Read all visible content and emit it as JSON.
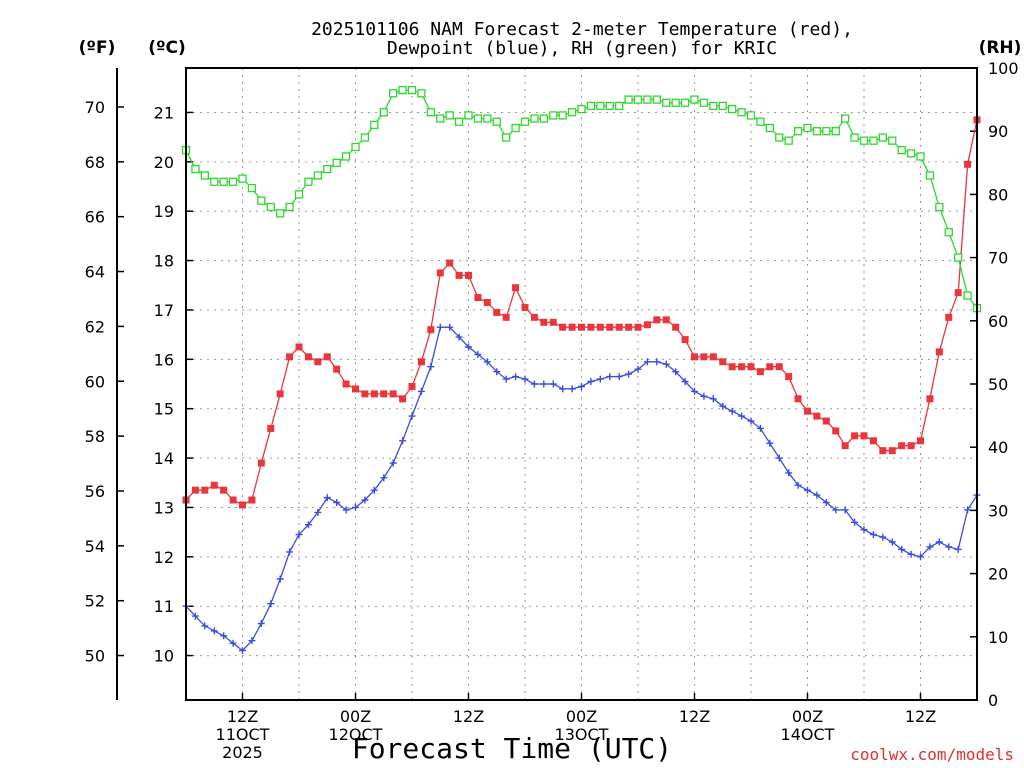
{
  "chart_data": {
    "type": "line",
    "title": [
      "2025101106 NAM Forecast 2-meter Temperature (red),",
      "Dewpoint (blue), RH (green) for KRIC"
    ],
    "units": {
      "fahrenheit": "(ºF)",
      "celsius": "(ºC)",
      "rh": "(RH)"
    },
    "xlabel": "Forecast Time (UTC)",
    "credit": "coolwx.com/models",
    "x_ticks": [
      {
        "hour": 6,
        "lines": [
          "12Z",
          "11OCT",
          "2025"
        ]
      },
      {
        "hour": 18,
        "lines": [
          "00Z",
          "12OCT"
        ]
      },
      {
        "hour": 30,
        "lines": [
          "12Z"
        ]
      },
      {
        "hour": 42,
        "lines": [
          "00Z",
          "13OCT"
        ]
      },
      {
        "hour": 54,
        "lines": [
          "12Z"
        ]
      },
      {
        "hour": 66,
        "lines": [
          "00Z",
          "14OCT"
        ]
      },
      {
        "hour": 78,
        "lines": [
          "12Z"
        ]
      }
    ],
    "xlim": [
      0,
      84
    ],
    "ylim_celsius": [
      9.1,
      21.9
    ],
    "ylim_rh": [
      0,
      100
    ],
    "celsius_ticks": [
      10,
      11,
      12,
      13,
      14,
      15,
      16,
      17,
      18,
      19,
      20,
      21
    ],
    "fahrenheit_ticks": [
      50,
      52,
      54,
      56,
      58,
      60,
      62,
      64,
      66,
      68,
      70
    ],
    "rh_ticks": [
      0,
      10,
      20,
      30,
      40,
      50,
      60,
      70,
      80,
      90,
      100
    ],
    "grid": true,
    "series": [
      {
        "name": "Temperature",
        "color": "#e8363c",
        "marker": "filled-square",
        "axis": "celsius",
        "values": [
          13.15,
          13.35,
          13.35,
          13.45,
          13.35,
          13.15,
          13.05,
          13.15,
          13.9,
          14.6,
          15.3,
          16.05,
          16.25,
          16.05,
          15.95,
          16.05,
          15.8,
          15.5,
          15.4,
          15.3,
          15.3,
          15.3,
          15.3,
          15.2,
          15.45,
          15.95,
          16.6,
          17.75,
          17.95,
          17.7,
          17.7,
          17.25,
          17.15,
          16.95,
          16.85,
          17.45,
          17.05,
          16.85,
          16.75,
          16.75,
          16.65,
          16.65,
          16.65,
          16.65,
          16.65,
          16.65,
          16.65,
          16.65,
          16.65,
          16.7,
          16.8,
          16.8,
          16.65,
          16.4,
          16.05,
          16.05,
          16.05,
          15.95,
          15.85,
          15.85,
          15.85,
          15.75,
          15.85,
          15.85,
          15.65,
          15.2,
          14.95,
          14.85,
          14.75,
          14.55,
          14.25,
          14.45,
          14.45,
          14.35,
          14.15,
          14.15,
          14.25,
          14.25,
          14.35,
          15.2,
          16.15,
          16.85,
          17.35,
          19.95,
          20.85
        ]
      },
      {
        "name": "Dewpoint",
        "color": "#3b4de0",
        "marker": "plus",
        "axis": "celsius",
        "values": [
          11.0,
          10.8,
          10.6,
          10.5,
          10.4,
          10.25,
          10.1,
          10.3,
          10.65,
          11.05,
          11.55,
          12.1,
          12.45,
          12.65,
          12.9,
          13.2,
          13.1,
          12.95,
          13.0,
          13.15,
          13.35,
          13.6,
          13.9,
          14.35,
          14.85,
          15.35,
          15.85,
          16.65,
          16.65,
          16.45,
          16.25,
          16.1,
          15.95,
          15.75,
          15.6,
          15.65,
          15.6,
          15.5,
          15.5,
          15.5,
          15.4,
          15.4,
          15.45,
          15.55,
          15.6,
          15.65,
          15.65,
          15.7,
          15.8,
          15.95,
          15.95,
          15.9,
          15.75,
          15.55,
          15.35,
          15.25,
          15.2,
          15.05,
          14.95,
          14.85,
          14.75,
          14.6,
          14.3,
          14.0,
          13.7,
          13.45,
          13.35,
          13.25,
          13.1,
          12.95,
          12.95,
          12.7,
          12.55,
          12.45,
          12.4,
          12.3,
          12.15,
          12.05,
          12.0,
          12.2,
          12.3,
          12.2,
          12.15,
          12.95,
          13.25
        ]
      },
      {
        "name": "RH",
        "color": "#2fd62f",
        "marker": "open-square",
        "axis": "rh",
        "values": [
          87,
          84,
          83,
          82,
          82,
          82,
          82.5,
          81,
          79,
          78,
          77,
          78,
          80,
          82,
          83,
          84,
          85,
          86,
          87.5,
          89,
          91,
          93,
          96,
          96.5,
          96.5,
          96,
          93,
          92,
          92.5,
          91.5,
          92.5,
          92,
          92,
          91.5,
          89,
          90.5,
          91.5,
          92,
          92,
          92.5,
          92.5,
          93,
          93.5,
          94,
          94,
          94,
          94,
          95,
          95,
          95,
          95,
          94.5,
          94.5,
          94.5,
          95,
          94.5,
          94,
          94,
          93.5,
          93,
          92.5,
          91.5,
          90.5,
          89,
          88.5,
          90,
          90.5,
          90,
          90,
          90,
          92,
          89,
          88.5,
          88.5,
          89,
          88.5,
          87,
          86.5,
          86,
          83,
          78,
          74,
          70,
          64,
          62
        ]
      }
    ]
  }
}
